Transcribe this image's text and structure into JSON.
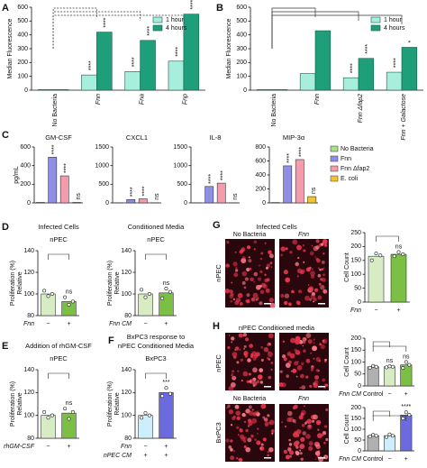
{
  "panels": [
    "A",
    "B",
    "C",
    "D",
    "E",
    "F",
    "G",
    "H"
  ],
  "images": {
    "g_title": "Infected Cells",
    "g_cols": [
      "No Bacteria",
      "Fnn"
    ],
    "g_row": "nPEC",
    "h_title": "nPEC Conditioned media",
    "h_cols": [
      "No Bacteria",
      "Fnn"
    ],
    "h_rows": [
      "nPEC",
      "BxPC3"
    ]
  },
  "chart_data": [
    {
      "type": "bar",
      "ylabel": "Median Fluorescence",
      "categories": [
        "No Bacteria",
        "Fnn",
        "Fna",
        "Fnp"
      ],
      "series": [
        {
          "name": "1 hour",
          "color": "#a8eedd",
          "values": [
            4,
            110,
            135,
            210
          ],
          "sig": [
            null,
            "****",
            "****",
            "****"
          ]
        },
        {
          "name": "4 hours",
          "color": "#1f9e7a",
          "values": [
            4,
            420,
            360,
            550
          ],
          "sig": [
            null,
            "****",
            "****",
            "****"
          ]
        }
      ],
      "ylim": [
        0,
        600
      ],
      "yticks": [
        0,
        100,
        200,
        300,
        400,
        500,
        600
      ],
      "legend": "top-right"
    },
    {
      "type": "bar",
      "ylabel": "Median Fluorescence",
      "categories": [
        "No Bacteria",
        "Fnn",
        "Fnn Δfap2",
        "Fnn + Galactose"
      ],
      "series": [
        {
          "name": "1 hour",
          "color": "#a8eedd",
          "values": [
            4,
            120,
            90,
            130
          ],
          "sig": [
            null,
            null,
            "****",
            "****"
          ]
        },
        {
          "name": "4 hours",
          "color": "#1f9e7a",
          "values": [
            4,
            430,
            230,
            310
          ],
          "sig": [
            null,
            null,
            "****",
            "*"
          ]
        }
      ],
      "ylim": [
        0,
        600
      ],
      "yticks": [
        0,
        100,
        200,
        300,
        400,
        500,
        600
      ],
      "legend": "top-right"
    },
    {
      "type": "bar",
      "title": "GM-CSF",
      "ylabel": "pg/mL",
      "values": [
        5,
        490,
        290,
        5
      ],
      "colors": [
        "#a6e08a",
        "#8f8fe8",
        "#f49cae",
        "#f4c430"
      ],
      "sig": [
        null,
        "****",
        "****",
        "ns"
      ],
      "ylim": [
        0,
        600
      ],
      "yticks": [
        0,
        200,
        400,
        600
      ]
    },
    {
      "type": "bar",
      "title": "CXCL1",
      "values": [
        5,
        90,
        110,
        5
      ],
      "colors": [
        "#a6e08a",
        "#8f8fe8",
        "#f49cae",
        "#f4c430"
      ],
      "sig": [
        null,
        "****",
        "****",
        "ns"
      ],
      "ylim": [
        0,
        1500
      ],
      "yticks": [
        0,
        500,
        1000,
        1500
      ]
    },
    {
      "type": "bar",
      "title": "IL-8",
      "values": [
        5,
        440,
        530,
        5
      ],
      "colors": [
        "#a6e08a",
        "#8f8fe8",
        "#f49cae",
        "#f4c430"
      ],
      "sig": [
        null,
        "****",
        "****",
        "ns"
      ],
      "ylim": [
        0,
        1500
      ],
      "yticks": [
        0,
        500,
        1000,
        1500
      ]
    },
    {
      "type": "bar",
      "title": "MIP-3α",
      "values": [
        5,
        530,
        620,
        90
      ],
      "categories": [
        "No Bacteria",
        "Fnn",
        "Fnn Δfap2",
        "E. coli"
      ],
      "colors": [
        "#a6e08a",
        "#8f8fe8",
        "#f49cae",
        "#f4c430"
      ],
      "sig": [
        null,
        "****",
        "****",
        "ns"
      ],
      "ylim": [
        0,
        800
      ],
      "yticks": [
        0,
        200,
        400,
        600,
        800
      ],
      "legend": "right"
    },
    {
      "type": "bar",
      "title": "Infected Cells",
      "subtitle": "nPEC",
      "ylabel": [
        "Relative",
        "Proliferation (%)"
      ],
      "values": [
        100,
        93
      ],
      "points": [
        [
          103,
          98,
          100
        ],
        [
          97,
          90,
          93
        ]
      ],
      "colors": [
        "#d8ecc4",
        "#7cbf45"
      ],
      "sig": [
        null,
        "ns"
      ],
      "ylim": [
        80,
        140
      ],
      "yticks": [
        80,
        100,
        120,
        140
      ],
      "xrows": [
        {
          "label": "Fnn",
          "ticks": [
            "−",
            "+"
          ]
        }
      ]
    },
    {
      "type": "bar",
      "title": "Conditioned Media",
      "subtitle": "nPEC",
      "ylabel": [
        "Relative",
        "Proliferation (%)"
      ],
      "values": [
        100,
        101
      ],
      "points": [
        [
          104,
          97,
          100
        ],
        [
          96,
          105,
          102
        ]
      ],
      "colors": [
        "#d8ecc4",
        "#7cbf45"
      ],
      "sig": [
        null,
        "ns"
      ],
      "ylim": [
        80,
        140
      ],
      "yticks": [
        80,
        100,
        120,
        140
      ],
      "xrows": [
        {
          "label": "Fnn CM",
          "ticks": [
            "−",
            "+"
          ]
        }
      ]
    },
    {
      "type": "bar",
      "title": "Addition of rhGM-CSF",
      "subtitle": "nPEC",
      "ylabel": [
        "Relative",
        "Proliferation (%)"
      ],
      "values": [
        100,
        102
      ],
      "points": [
        [
          103,
          98,
          100
        ],
        [
          106,
          97,
          103
        ]
      ],
      "colors": [
        "#d8ecc4",
        "#7cbf45"
      ],
      "sig": [
        null,
        "ns"
      ],
      "ylim": [
        80,
        140
      ],
      "yticks": [
        80,
        100,
        120,
        140
      ],
      "xrows": [
        {
          "label": "rhGM-CSF",
          "ticks": [
            "−",
            "+"
          ]
        }
      ]
    },
    {
      "type": "bar",
      "title": [
        "BxPC3 response to",
        "nPEC Conditioned Media"
      ],
      "subtitle": "BxPC3",
      "ylabel": [
        "Relative",
        "Proliferation (%)"
      ],
      "values": [
        100,
        120
      ],
      "points": [
        [
          98,
          102,
          100
        ],
        [
          117,
          124,
          119
        ]
      ],
      "colors": [
        "#cfeefd",
        "#6b6bdf"
      ],
      "sig": [
        null,
        "***"
      ],
      "ylim": [
        80,
        140
      ],
      "yticks": [
        80,
        100,
        120,
        140
      ],
      "xrows": [
        {
          "label": "Fnn",
          "ticks": [
            "−",
            "+"
          ]
        },
        {
          "label": "nPEC CM",
          "ticks": [
            "+",
            "+"
          ]
        }
      ]
    },
    {
      "type": "bar",
      "ylabel": "Cell Count",
      "values": [
        165,
        172
      ],
      "points": [
        [
          150,
          175,
          168
        ],
        [
          165,
          180,
          172
        ]
      ],
      "colors": [
        "#d8ecc4",
        "#7cbf45"
      ],
      "sig": [
        null,
        "ns"
      ],
      "ylim": [
        0,
        250
      ],
      "yticks": [
        0,
        50,
        100,
        150,
        200,
        250
      ],
      "xrows": [
        {
          "label": "Fnn",
          "ticks": [
            "−",
            "+"
          ]
        }
      ]
    },
    {
      "type": "bar",
      "ylabel": "Cell Count",
      "values": [
        80,
        80,
        88
      ],
      "points": [
        [
          76,
          84,
          80
        ],
        [
          78,
          82,
          80
        ],
        [
          75,
          100,
          88
        ]
      ],
      "colors": [
        "#b0b0b0",
        "#d8ecc4",
        "#7cbf45"
      ],
      "sig": [
        null,
        "ns",
        "ns"
      ],
      "ylim": [
        0,
        200
      ],
      "yticks": [
        0,
        50,
        100,
        150,
        200
      ],
      "xrows": [
        {
          "label": "Fnn CM",
          "ticks": [
            "Control",
            "−",
            "+"
          ]
        }
      ]
    },
    {
      "type": "bar",
      "ylabel": "Cell Count",
      "values": [
        70,
        70,
        165
      ],
      "points": [
        [
          66,
          74,
          70
        ],
        [
          64,
          76,
          70
        ],
        [
          150,
          178,
          166
        ]
      ],
      "colors": [
        "#b0b0b0",
        "#cfeefd",
        "#6b6bdf"
      ],
      "sig": [
        null,
        null,
        "****"
      ],
      "ylim": [
        0,
        200
      ],
      "yticks": [
        0,
        50,
        100,
        150,
        200
      ],
      "xrows": [
        {
          "label": "Fnn CM",
          "ticks": [
            "Control",
            "−",
            "+"
          ]
        }
      ]
    }
  ]
}
